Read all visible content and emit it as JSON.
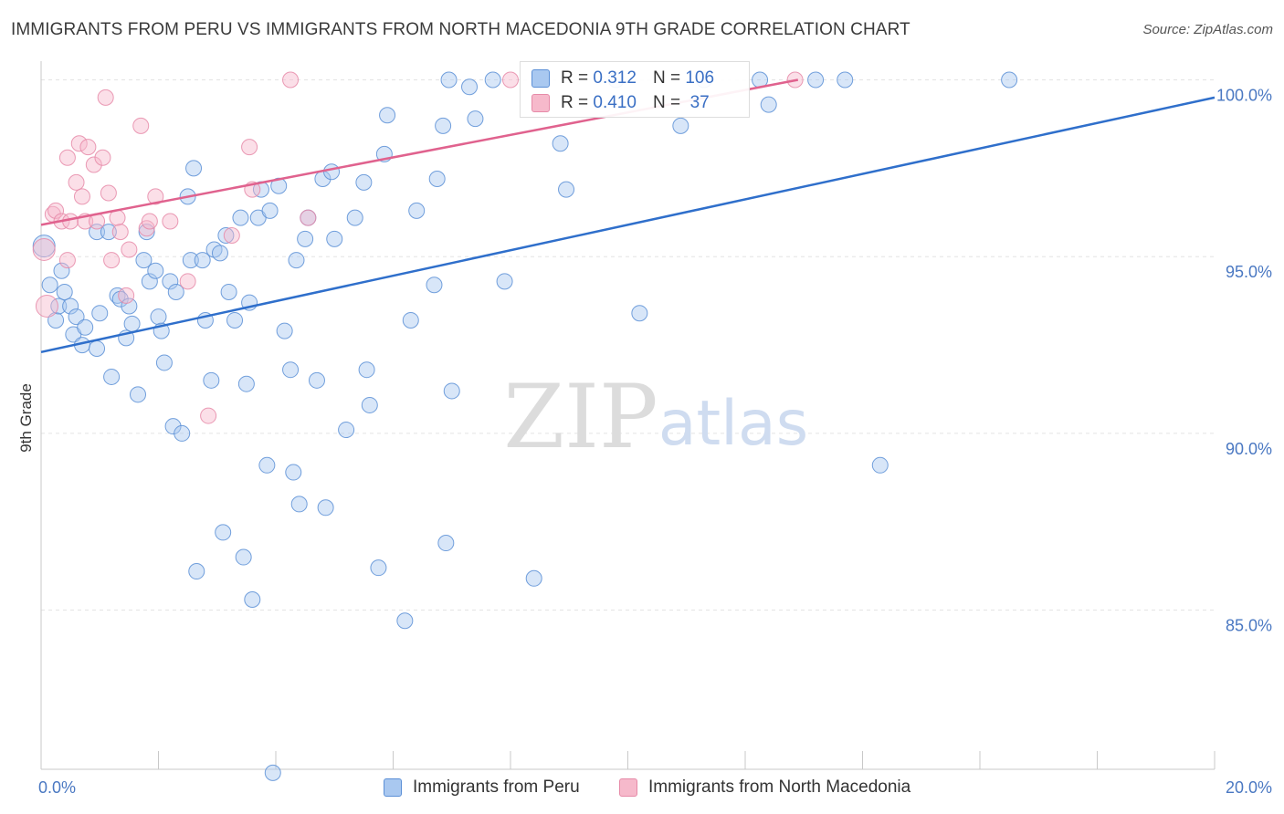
{
  "header": {
    "title": "IMMIGRANTS FROM PERU VS IMMIGRANTS FROM NORTH MACEDONIA 9TH GRADE CORRELATION CHART",
    "source": "Source: ZipAtlas.com"
  },
  "watermark": {
    "zip": "ZIP",
    "atlas": "atlas"
  },
  "stats": {
    "rows": [
      {
        "r_label": "R =",
        "r_value": "0.312",
        "n_label": "N =",
        "n_value": "106"
      },
      {
        "r_label": "R =",
        "r_value": "0.410",
        "n_label": "N =",
        "n_value": " 37"
      }
    ]
  },
  "legend": {
    "items": [
      {
        "label": "Immigrants from Peru"
      },
      {
        "label": "Immigrants from North Macedonia"
      }
    ]
  },
  "colors": {
    "peru_fill": "#a9c8f0",
    "peru_stroke": "#5b8fd6",
    "peru_line": "#2f6fcb",
    "macedonia_fill": "#f6b9cb",
    "macedonia_stroke": "#e68aa8",
    "macedonia_line": "#e0628e",
    "grid": "#e3e3e3",
    "tick_label": "#4a78c2"
  },
  "chart_data": {
    "type": "scatter",
    "title": "IMMIGRANTS FROM PERU VS IMMIGRANTS FROM NORTH MACEDONIA 9TH GRADE CORRELATION CHART",
    "xlabel": "",
    "ylabel": "9th Grade",
    "xlim": [
      0,
      20
    ],
    "ylim": [
      80.5,
      100.4
    ],
    "y_ticks": [
      85,
      90,
      95,
      100
    ],
    "y_tick_labels": [
      "85.0%",
      "90.0%",
      "95.0%",
      "100.0%"
    ],
    "x_tick_labels": [
      "0.0%",
      "20.0%"
    ],
    "x_tick_label_values": [
      0,
      20
    ],
    "x_minor_ticks": [
      0,
      2,
      4,
      6,
      8,
      10,
      12,
      14,
      16,
      18,
      20
    ],
    "grid": true,
    "legend_position": "bottom",
    "series": [
      {
        "name": "Immigrants from Peru",
        "color": "#5b8fd6",
        "points": [
          [
            0.05,
            95.3
          ],
          [
            0.15,
            94.2
          ],
          [
            0.25,
            93.2
          ],
          [
            0.3,
            93.6
          ],
          [
            0.35,
            94.6
          ],
          [
            0.4,
            94.0
          ],
          [
            0.5,
            93.6
          ],
          [
            0.55,
            92.8
          ],
          [
            0.6,
            93.3
          ],
          [
            0.7,
            92.5
          ],
          [
            0.75,
            93.0
          ],
          [
            0.95,
            92.4
          ],
          [
            1.0,
            93.4
          ],
          [
            0.95,
            95.7
          ],
          [
            1.15,
            95.7
          ],
          [
            1.3,
            93.9
          ],
          [
            1.35,
            93.8
          ],
          [
            1.45,
            92.7
          ],
          [
            1.5,
            93.6
          ],
          [
            1.55,
            93.1
          ],
          [
            1.2,
            91.6
          ],
          [
            1.65,
            91.1
          ],
          [
            1.75,
            94.9
          ],
          [
            1.8,
            95.7
          ],
          [
            1.85,
            94.3
          ],
          [
            1.95,
            94.6
          ],
          [
            2.0,
            93.3
          ],
          [
            2.05,
            92.9
          ],
          [
            2.1,
            92.0
          ],
          [
            2.2,
            94.3
          ],
          [
            2.3,
            94.0
          ],
          [
            2.25,
            90.2
          ],
          [
            2.4,
            90.0
          ],
          [
            2.5,
            96.7
          ],
          [
            2.55,
            94.9
          ],
          [
            2.6,
            97.5
          ],
          [
            2.75,
            94.9
          ],
          [
            2.8,
            93.2
          ],
          [
            2.9,
            91.5
          ],
          [
            2.95,
            95.2
          ],
          [
            3.05,
            95.1
          ],
          [
            3.1,
            87.2
          ],
          [
            2.65,
            86.1
          ],
          [
            3.15,
            95.6
          ],
          [
            3.2,
            94.0
          ],
          [
            3.3,
            93.2
          ],
          [
            3.4,
            96.1
          ],
          [
            3.45,
            86.5
          ],
          [
            3.5,
            91.4
          ],
          [
            3.55,
            93.7
          ],
          [
            3.6,
            85.3
          ],
          [
            3.7,
            96.1
          ],
          [
            3.75,
            96.9
          ],
          [
            3.85,
            89.1
          ],
          [
            3.9,
            96.3
          ],
          [
            3.95,
            80.4
          ],
          [
            4.05,
            97.0
          ],
          [
            4.15,
            92.9
          ],
          [
            4.25,
            91.8
          ],
          [
            4.3,
            88.9
          ],
          [
            4.35,
            94.9
          ],
          [
            4.4,
            88.0
          ],
          [
            4.5,
            95.5
          ],
          [
            4.55,
            96.1
          ],
          [
            4.7,
            91.5
          ],
          [
            4.8,
            97.2
          ],
          [
            4.85,
            87.9
          ],
          [
            4.95,
            97.4
          ],
          [
            5.0,
            95.5
          ],
          [
            5.2,
            90.1
          ],
          [
            5.35,
            96.1
          ],
          [
            5.5,
            97.1
          ],
          [
            5.55,
            91.8
          ],
          [
            5.6,
            90.8
          ],
          [
            5.75,
            86.2
          ],
          [
            5.85,
            97.9
          ],
          [
            5.9,
            99.0
          ],
          [
            6.2,
            84.7
          ],
          [
            6.3,
            93.2
          ],
          [
            6.4,
            96.3
          ],
          [
            6.7,
            94.2
          ],
          [
            6.75,
            97.2
          ],
          [
            6.85,
            98.7
          ],
          [
            6.9,
            86.9
          ],
          [
            6.95,
            100.0
          ],
          [
            7.0,
            91.2
          ],
          [
            7.3,
            99.8
          ],
          [
            7.4,
            98.9
          ],
          [
            7.7,
            100.0
          ],
          [
            7.9,
            94.3
          ],
          [
            8.4,
            85.9
          ],
          [
            8.85,
            98.2
          ],
          [
            8.95,
            96.9
          ],
          [
            9.8,
            100.0
          ],
          [
            10.2,
            93.4
          ],
          [
            10.9,
            98.7
          ],
          [
            11.3,
            100.0
          ],
          [
            12.25,
            100.0
          ],
          [
            12.4,
            99.3
          ],
          [
            13.2,
            100.0
          ],
          [
            13.7,
            100.0
          ],
          [
            14.3,
            89.1
          ],
          [
            16.5,
            100.0
          ]
        ],
        "trend": {
          "x": [
            0,
            20
          ],
          "y": [
            92.3,
            99.5
          ]
        },
        "r": 0.312,
        "n": 106
      },
      {
        "name": "Immigrants from North Macedonia",
        "color": "#e68aa8",
        "points": [
          [
            0.05,
            95.2
          ],
          [
            0.1,
            93.6
          ],
          [
            0.2,
            96.2
          ],
          [
            0.25,
            96.3
          ],
          [
            0.35,
            96.0
          ],
          [
            0.45,
            94.9
          ],
          [
            0.45,
            97.8
          ],
          [
            0.5,
            96.0
          ],
          [
            0.6,
            97.1
          ],
          [
            0.65,
            98.2
          ],
          [
            0.7,
            96.7
          ],
          [
            0.75,
            96.0
          ],
          [
            0.8,
            98.1
          ],
          [
            0.9,
            97.6
          ],
          [
            0.95,
            96.0
          ],
          [
            1.05,
            97.8
          ],
          [
            1.1,
            99.5
          ],
          [
            1.15,
            96.8
          ],
          [
            1.2,
            94.9
          ],
          [
            1.3,
            96.1
          ],
          [
            1.35,
            95.7
          ],
          [
            1.45,
            93.9
          ],
          [
            1.5,
            95.2
          ],
          [
            1.7,
            98.7
          ],
          [
            1.8,
            95.8
          ],
          [
            1.85,
            96.0
          ],
          [
            1.95,
            96.7
          ],
          [
            2.2,
            96.0
          ],
          [
            2.5,
            94.3
          ],
          [
            2.85,
            90.5
          ],
          [
            3.25,
            95.6
          ],
          [
            3.55,
            98.1
          ],
          [
            3.6,
            96.9
          ],
          [
            4.25,
            100.0
          ],
          [
            4.55,
            96.1
          ],
          [
            8.0,
            100.0
          ],
          [
            12.85,
            100.0
          ]
        ],
        "trend": {
          "x": [
            0,
            12.9
          ],
          "y": [
            95.9,
            100.0
          ]
        },
        "r": 0.41,
        "n": 37
      }
    ]
  }
}
